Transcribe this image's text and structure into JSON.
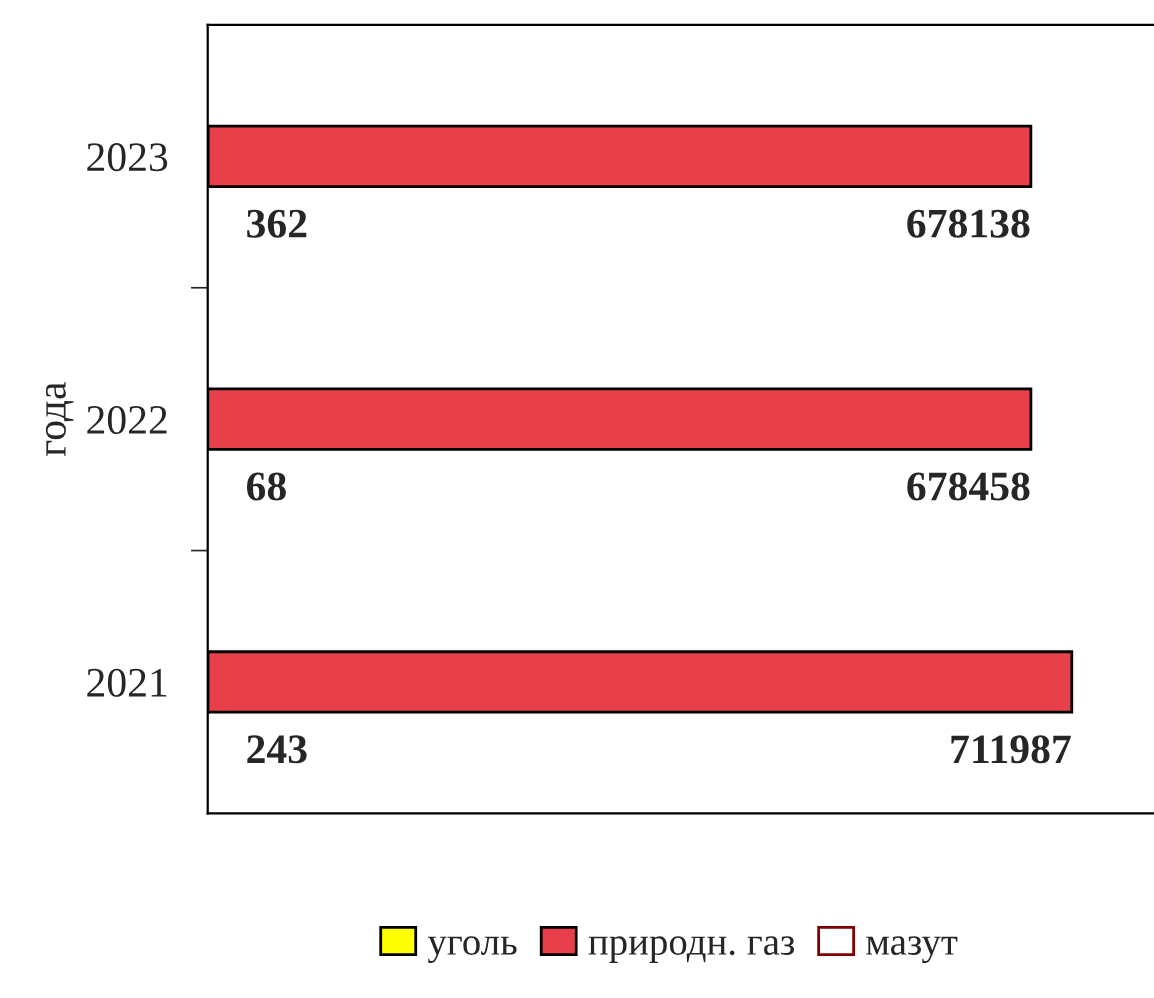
{
  "chart_data": {
    "type": "bar",
    "orientation": "horizontal",
    "stacked": true,
    "ylabel": "года",
    "categories": [
      "2023",
      "2022",
      "2021"
    ],
    "xlim": [
      0,
      780000
    ],
    "series": [
      {
        "name": "уголь",
        "color": "#ffff00",
        "values": [
          362,
          68,
          243
        ],
        "value_labels": [
          "362",
          "68",
          "243"
        ]
      },
      {
        "name": "природн. газ",
        "color": "#e8404a",
        "values": [
          678138,
          678458,
          711987
        ],
        "value_labels": [
          "678138",
          "678458",
          "711987"
        ]
      },
      {
        "name": "мазут",
        "color": "#ffffff",
        "values": [
          null,
          null,
          null
        ]
      }
    ],
    "legend": "bottom",
    "grid": false
  }
}
